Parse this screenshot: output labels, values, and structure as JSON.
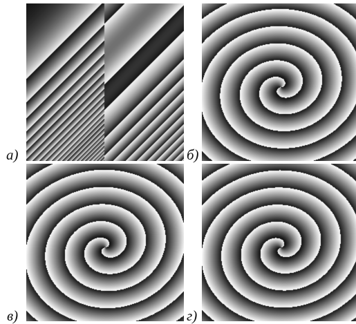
{
  "figure": {
    "panels": [
      {
        "id": "a",
        "label": "а)",
        "pattern": "linear-ramp-fringes"
      },
      {
        "id": "b",
        "label": "б)",
        "pattern": "spiral-phase"
      },
      {
        "id": "c",
        "label": "в)",
        "pattern": "spiral-phase"
      },
      {
        "id": "d",
        "label": "г)",
        "pattern": "spiral-phase"
      }
    ]
  }
}
